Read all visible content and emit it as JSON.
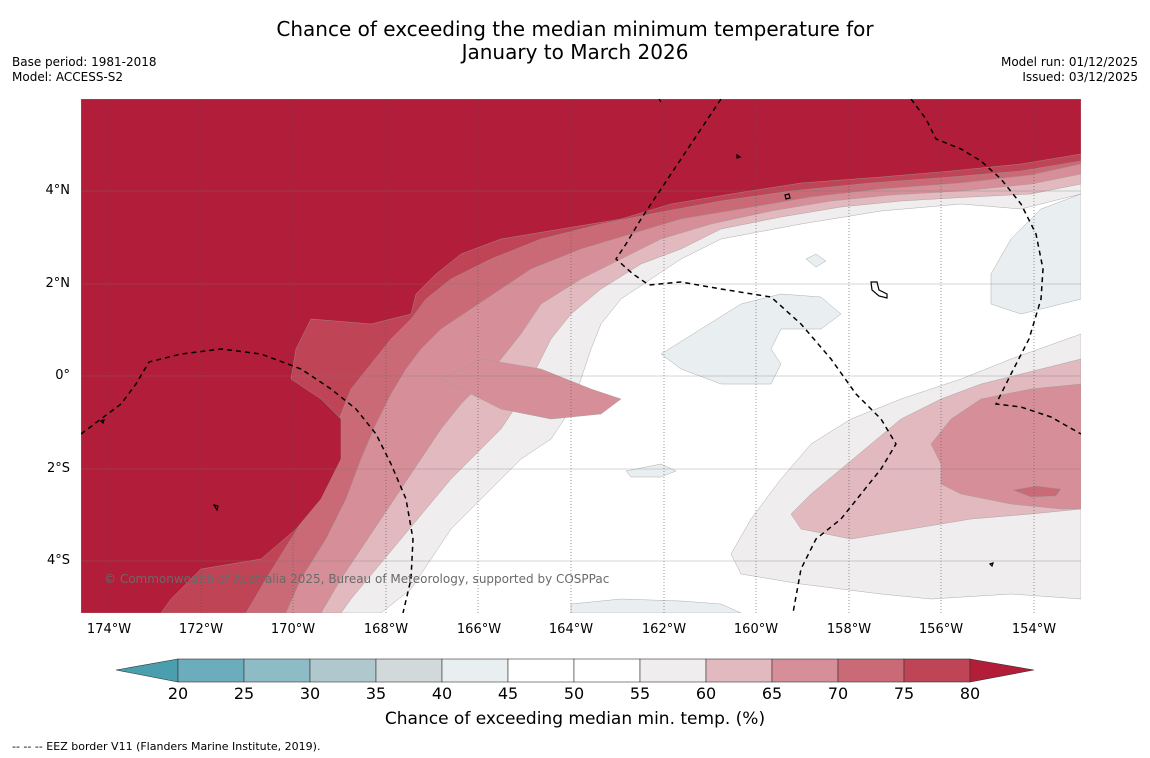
{
  "header": {
    "title_line1": "Chance of exceeding the median minimum temperature for",
    "title_line2": "January to March 2026",
    "base_period": "Base period: 1981-2018",
    "model": "Model: ACCESS-S2",
    "model_run": "Model run: 01/12/2025",
    "issued": "Issued: 03/12/2025"
  },
  "map": {
    "lat_labels": [
      "4°N",
      "2°N",
      "0°",
      "2°S",
      "4°S"
    ],
    "lon_labels": [
      "174°W",
      "172°W",
      "170°W",
      "168°W",
      "166°W",
      "164°W",
      "162°W",
      "160°W",
      "158°W",
      "156°W",
      "154°W"
    ],
    "copyright": "© Commonwealth of Australia 2025, Bureau of Meteorology, supported by COSPPac",
    "eez_note": "--  --  -- EEZ border V11 (Flanders Marine Institute, 2019)."
  },
  "colorbar": {
    "label": "Chance of exceeding median min. temp. (%)",
    "ticks": [
      "20",
      "25",
      "30",
      "35",
      "40",
      "45",
      "50",
      "55",
      "60",
      "65",
      "70",
      "75",
      "80"
    ],
    "colors": {
      "lt20": "#4a9fae",
      "b20_25": "#6cadbd",
      "b25_30": "#8dbbc6",
      "b30_35": "#aec8ce",
      "b35_40": "#d2d9db",
      "b40_45": "#e9eef0",
      "b45_50": "#ffffff",
      "b50_55": "#ffffff",
      "b55_60": "#efeded",
      "b60_65": "#e1b9be",
      "b65_70": "#d68f98",
      "b70_75": "#c96a76",
      "b75_80": "#bf4456",
      "gt80": "#b21e39"
    }
  }
}
